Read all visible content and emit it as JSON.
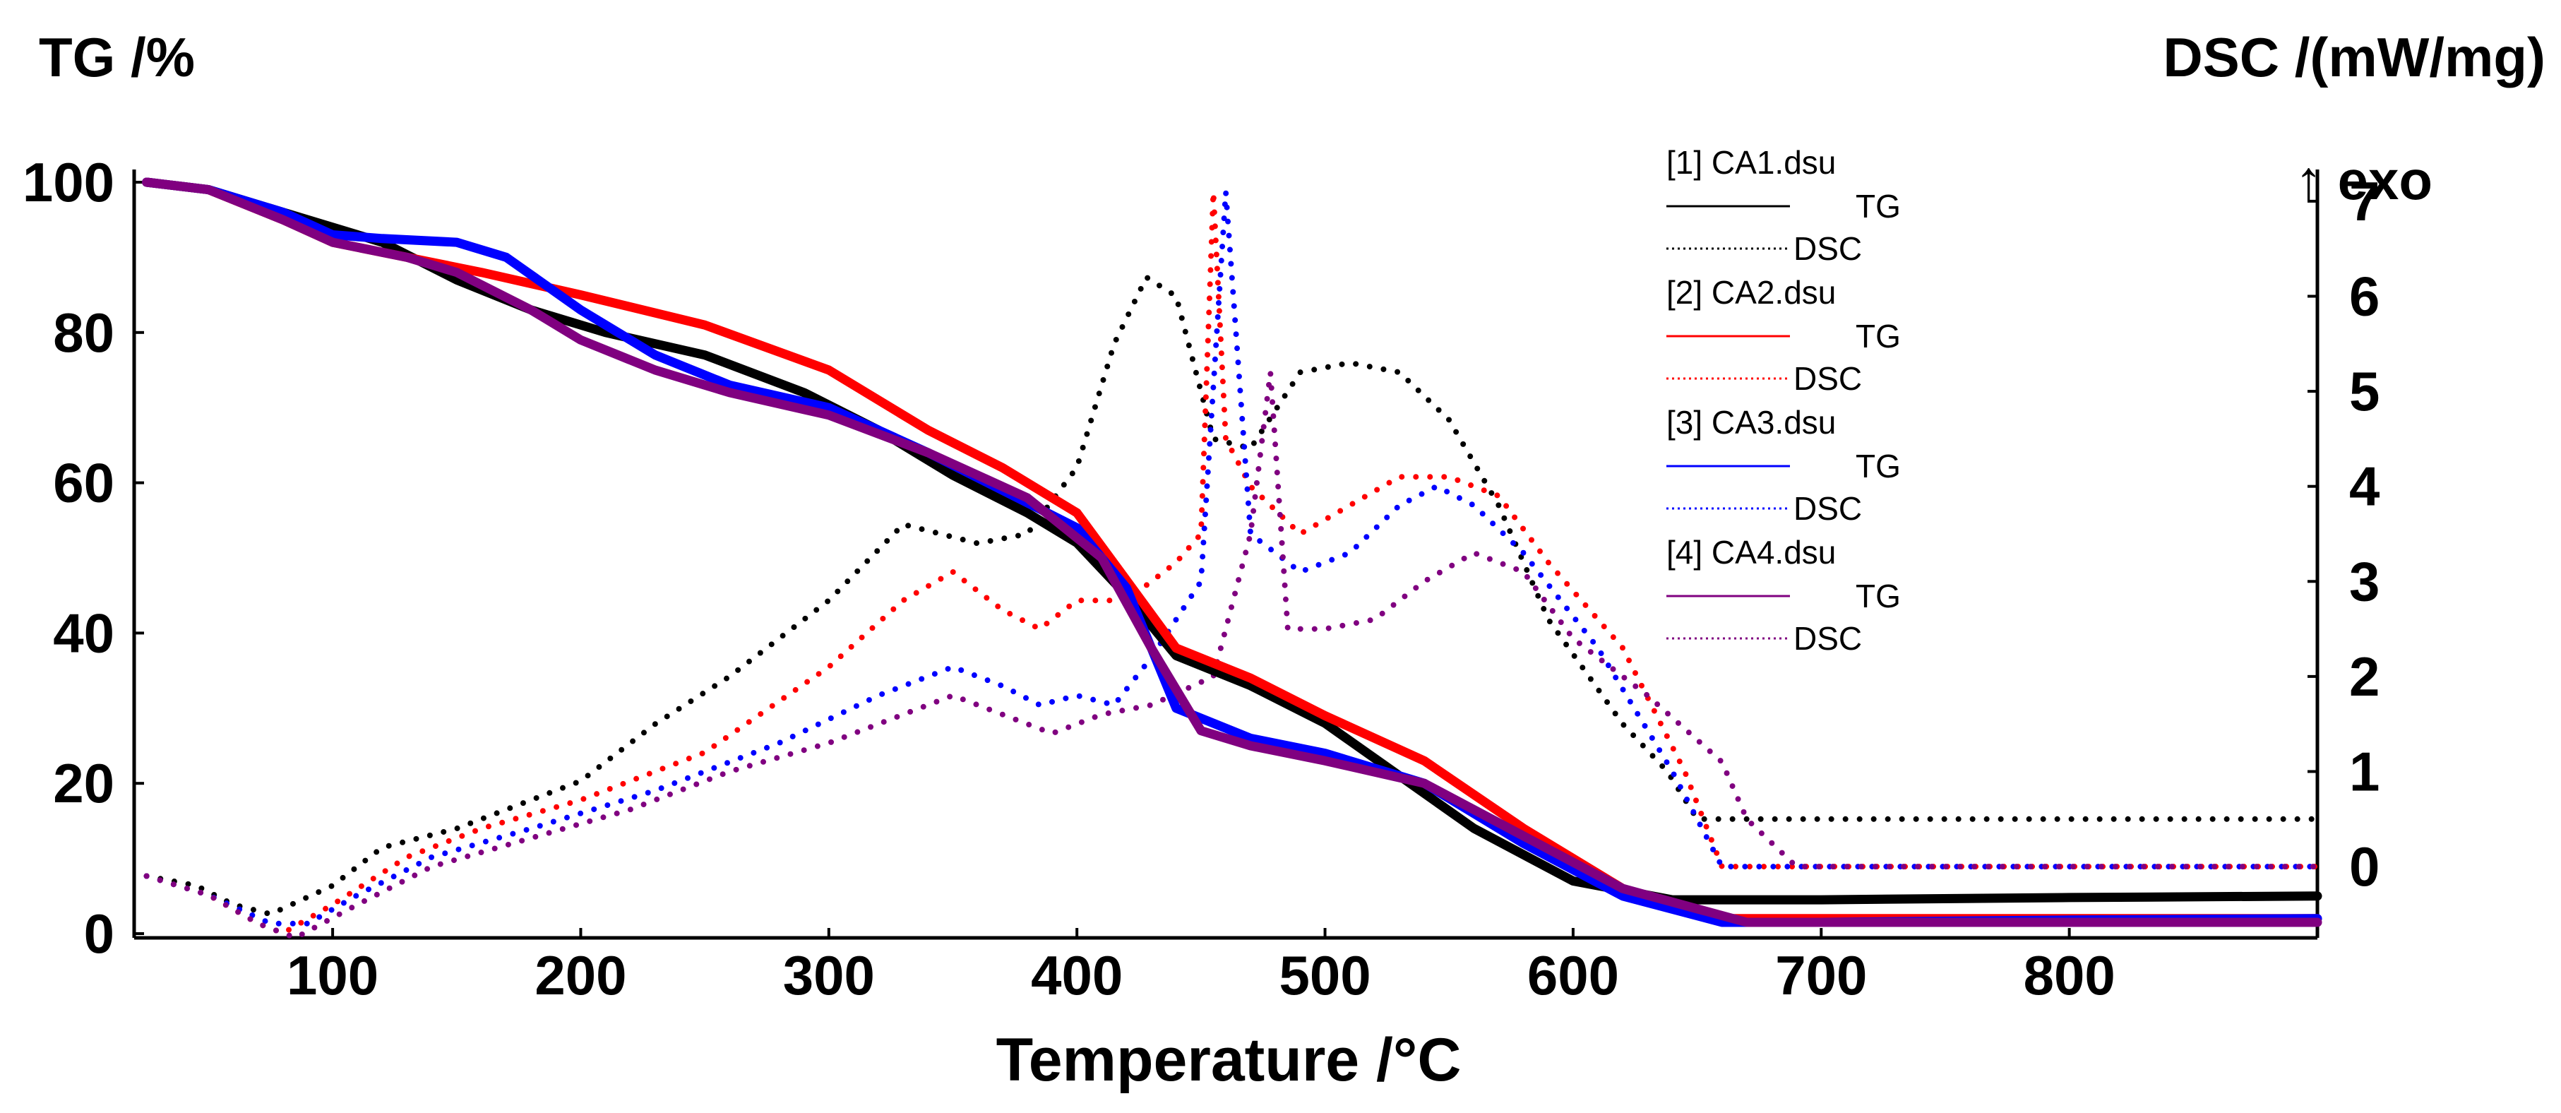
{
  "chart_data": {
    "type": "line",
    "xlabel": "Temperature /°C",
    "ylabel_left": "TG /%",
    "ylabel_right": "DSC /(mW/mg)",
    "exo_label": "↑ exo",
    "xlim": [
      20,
      900
    ],
    "ylim_left": [
      0,
      100
    ],
    "ylim_right": [
      -0.75,
      7.2
    ],
    "x_ticks": [
      100,
      200,
      300,
      400,
      500,
      600,
      700,
      800
    ],
    "y_left_ticks": [
      0,
      20,
      40,
      60,
      80,
      100
    ],
    "y_right_ticks": [
      0,
      1,
      2,
      3,
      4,
      5,
      6,
      7
    ],
    "grid": false,
    "legend_position": "top-right",
    "legend": [
      {
        "file": "[1] CA1.dsu",
        "tg": "TG",
        "dsc": "DSC",
        "color": "#000000"
      },
      {
        "file": "[2] CA2.dsu",
        "tg": "TG",
        "dsc": "DSC",
        "color": "#ff0000"
      },
      {
        "file": "[3] CA3.dsu",
        "tg": "TG",
        "dsc": "DSC",
        "color": "#0000ff"
      },
      {
        "file": "[4] CA4.dsu",
        "tg": "TG",
        "dsc": "DSC",
        "color": "#800080"
      }
    ],
    "series": [
      {
        "name": "[1] CA1.dsu TG",
        "axis": "left",
        "style": "solid",
        "color": "#000000",
        "x": [
          25,
          50,
          80,
          100,
          120,
          150,
          180,
          210,
          250,
          290,
          320,
          350,
          380,
          400,
          420,
          440,
          470,
          500,
          530,
          560,
          600,
          640,
          700,
          800,
          900
        ],
        "y": [
          100,
          99,
          96,
          94,
          92,
          87,
          83,
          80,
          77,
          72,
          67,
          61,
          56,
          52,
          45,
          37,
          33,
          28,
          21,
          14,
          7,
          4.5,
          4.5,
          4.8,
          5
        ]
      },
      {
        "name": "[1] CA1.dsu DSC",
        "axis": "right",
        "style": "dotted",
        "color": "#000000",
        "x": [
          25,
          45,
          60,
          75,
          100,
          120,
          150,
          180,
          200,
          230,
          260,
          300,
          330,
          360,
          380,
          400,
          415,
          428,
          440,
          455,
          470,
          490,
          510,
          530,
          550,
          570,
          590,
          620,
          638,
          650,
          700,
          800,
          900
        ],
        "y": [
          -0.1,
          -0.2,
          -0.4,
          -0.5,
          -0.2,
          0.2,
          0.4,
          0.7,
          0.9,
          1.5,
          2,
          2.8,
          3.6,
          3.4,
          3.5,
          4.2,
          5.5,
          6.2,
          6,
          4.5,
          4.4,
          5.2,
          5.3,
          5.2,
          4.7,
          3.8,
          2.6,
          1.5,
          1,
          0.5,
          0.5,
          0.5,
          0.5
        ]
      },
      {
        "name": "[2] CA2.dsu TG",
        "axis": "left",
        "style": "solid",
        "color": "#ff0000",
        "x": [
          25,
          50,
          80,
          100,
          130,
          160,
          200,
          250,
          300,
          340,
          370,
          400,
          420,
          440,
          470,
          500,
          540,
          580,
          620,
          660,
          700,
          800,
          900
        ],
        "y": [
          100,
          99,
          95,
          92,
          90,
          88,
          85,
          81,
          75,
          67,
          62,
          56,
          47,
          38,
          34,
          29,
          23,
          14,
          6,
          2,
          2,
          2,
          2
        ]
      },
      {
        "name": "[2] CA2.dsu DSC",
        "axis": "right",
        "style": "dotted",
        "color": "#ff0000",
        "x": [
          25,
          50,
          70,
          80,
          100,
          130,
          160,
          200,
          250,
          300,
          330,
          350,
          370,
          385,
          400,
          420,
          440,
          450,
          455,
          460,
          470,
          490,
          510,
          530,
          550,
          570,
          590,
          620,
          645,
          660,
          700,
          800,
          900
        ],
        "y": [
          -0.1,
          -0.3,
          -0.6,
          -0.7,
          -0.4,
          0.1,
          0.4,
          0.7,
          1.2,
          2.1,
          2.8,
          3.1,
          2.7,
          2.5,
          2.8,
          2.8,
          3.2,
          3.5,
          7.1,
          4.5,
          4,
          3.5,
          3.8,
          4.1,
          4.1,
          3.9,
          3.2,
          2.3,
          1,
          0,
          0,
          0,
          0
        ]
      },
      {
        "name": "[3] CA3.dsu TG",
        "axis": "left",
        "style": "solid",
        "color": "#0000ff",
        "x": [
          25,
          50,
          80,
          100,
          120,
          150,
          170,
          200,
          230,
          260,
          300,
          340,
          370,
          400,
          420,
          440,
          470,
          500,
          540,
          580,
          620,
          660,
          700,
          800,
          900
        ],
        "y": [
          100,
          99,
          96,
          93,
          92.5,
          92,
          90,
          83,
          77,
          73,
          70,
          64,
          59,
          54,
          46,
          30,
          26,
          24,
          20,
          12,
          5,
          1.5,
          1.5,
          1.8,
          2
        ]
      },
      {
        "name": "[3] CA3.dsu DSC",
        "axis": "right",
        "style": "dotted",
        "color": "#0000ff",
        "x": [
          25,
          50,
          75,
          90,
          110,
          140,
          180,
          230,
          280,
          320,
          350,
          370,
          385,
          400,
          415,
          430,
          450,
          460,
          470,
          490,
          510,
          530,
          545,
          560,
          580,
          610,
          640,
          660,
          700,
          800,
          900
        ],
        "y": [
          -0.1,
          -0.3,
          -0.6,
          -0.6,
          -0.3,
          0.1,
          0.4,
          0.8,
          1.3,
          1.8,
          2.1,
          1.9,
          1.7,
          1.8,
          1.7,
          2.2,
          3,
          7.1,
          3.5,
          3.1,
          3.3,
          3.8,
          4,
          3.8,
          3.3,
          2.3,
          1,
          0,
          0,
          0,
          0
        ]
      },
      {
        "name": "[4] CA4.dsu TG",
        "axis": "left",
        "style": "solid",
        "color": "#800080",
        "x": [
          25,
          50,
          80,
          100,
          130,
          150,
          180,
          200,
          230,
          260,
          300,
          340,
          380,
          410,
          430,
          450,
          470,
          500,
          540,
          580,
          620,
          670,
          700,
          800,
          900
        ],
        "y": [
          100,
          99,
          95,
          92,
          90,
          88,
          83,
          79,
          75,
          72,
          69,
          64,
          58,
          50,
          38,
          27,
          25,
          23,
          20,
          13,
          6,
          1.5,
          1.5,
          1.5,
          1.5
        ]
      },
      {
        "name": "[4] CA4.dsu DSC",
        "axis": "right",
        "style": "dotted",
        "color": "#800080",
        "x": [
          25,
          50,
          70,
          85,
          110,
          140,
          180,
          220,
          260,
          300,
          330,
          350,
          370,
          390,
          410,
          430,
          455,
          470,
          478,
          485,
          500,
          520,
          540,
          560,
          580,
          600,
          630,
          660,
          670,
          690,
          700,
          800,
          900
        ],
        "y": [
          -0.1,
          -0.3,
          -0.6,
          -0.75,
          -0.4,
          0,
          0.3,
          0.6,
          1,
          1.3,
          1.6,
          1.8,
          1.6,
          1.4,
          1.6,
          1.7,
          2,
          3.5,
          5.2,
          2.5,
          2.5,
          2.6,
          3,
          3.3,
          3.1,
          2.4,
          1.8,
          1.1,
          0.5,
          0,
          0,
          0,
          0
        ]
      }
    ]
  }
}
